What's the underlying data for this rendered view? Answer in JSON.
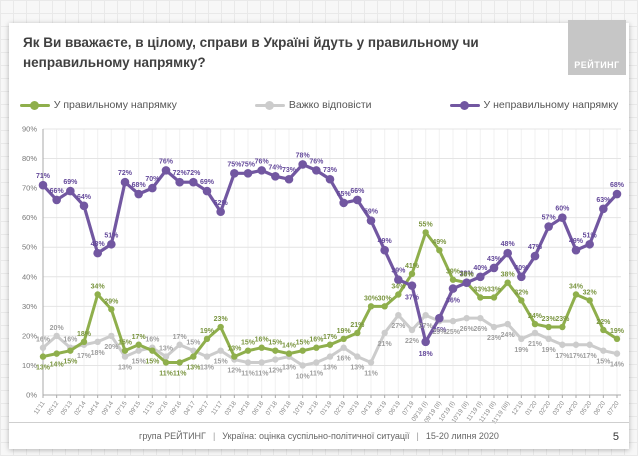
{
  "header": {
    "title": "Як Ви вважаєте, в цілому, справи в Україні йдуть у правильному чи неправильному напрямку?",
    "logo_text": "РЕЙТИНГ"
  },
  "legend": [
    {
      "label": "У правильному напрямку",
      "color": "#8faf4c"
    },
    {
      "label": "Важко відповісти",
      "color": "#cccccc"
    },
    {
      "label": "У неправильному напрямку",
      "color": "#7257a1"
    }
  ],
  "chart_data": {
    "type": "line",
    "title": "Як Ви вважаєте, в цілому, справи в Україні йдуть у правильному чи неправильному напрямку?",
    "ylim": [
      0,
      90
    ],
    "yticks": [
      "0%",
      "10%",
      "20%",
      "30%",
      "40%",
      "50%",
      "60%",
      "70%",
      "80%",
      "90%"
    ],
    "grid": true,
    "legend_position": "top",
    "x": [
      "11'11",
      "05'12",
      "05'13",
      "02'14",
      "04'14",
      "09'14",
      "07'15",
      "09'15",
      "11'15",
      "02'16",
      "09'16",
      "04'17",
      "08'17",
      "11'17",
      "03'18",
      "04'18",
      "06'18",
      "07'18",
      "09'18",
      "10'18",
      "12'18",
      "01'19",
      "02'19",
      "03'19",
      "04'19",
      "05'19",
      "06'19",
      "07'19",
      "09'19 (І)",
      "09'19 (ІІ)",
      "10'19 (І)",
      "10'19 (ІІ)",
      "11'19 (І)",
      "11'19 (ІІ)",
      "11'19 (ІІІ)",
      "12'19",
      "01'20",
      "02'20",
      "03'20",
      "04'20",
      "05'20",
      "06'20",
      "07'20"
    ],
    "series": [
      {
        "name": "У правильному напрямку",
        "color": "#8faf4c",
        "label_color": "#7a9540",
        "values": [
          13,
          14,
          15,
          18,
          34,
          29,
          15,
          17,
          15,
          11,
          11,
          13,
          19,
          23,
          13,
          15,
          16,
          15,
          14,
          15,
          16,
          17,
          19,
          21,
          30,
          30,
          34,
          41,
          55,
          49,
          39,
          38,
          33,
          33,
          38,
          32,
          24,
          23,
          23,
          34,
          32,
          22,
          19
        ]
      },
      {
        "name": "Важко відповісти",
        "color": "#cccccc",
        "label_color": "#9e9e9e",
        "values": [
          16,
          20,
          16,
          17,
          18,
          20,
          13,
          15,
          16,
          13,
          17,
          15,
          13,
          15,
          12,
          11,
          11,
          12,
          13,
          10,
          11,
          13,
          16,
          13,
          11,
          21,
          27,
          22,
          27,
          25,
          25,
          26,
          26,
          23,
          24,
          19,
          21,
          19,
          17,
          17,
          17,
          15,
          14
        ]
      },
      {
        "name": "У неправильному напрямку",
        "color": "#7257a1",
        "label_color": "#64499a",
        "values": [
          71,
          66,
          69,
          64,
          48,
          51,
          72,
          68,
          70,
          76,
          72,
          72,
          69,
          62,
          75,
          75,
          76,
          74,
          73,
          78,
          76,
          73,
          65,
          66,
          59,
          49,
          39,
          37,
          18,
          26,
          36,
          38,
          40,
          43,
          48,
          40,
          47,
          57,
          60,
          49,
          51,
          63,
          68
        ]
      }
    ]
  },
  "footer": {
    "source": "група РЕЙТИНГ",
    "sep": "|",
    "subject": "Україна: оцінка суспільно-політичної ситуації",
    "date": "15-20 липня 2020",
    "page": "5"
  }
}
